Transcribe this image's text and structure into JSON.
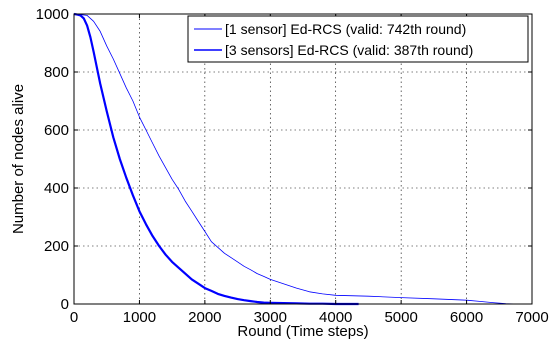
{
  "chart_data": {
    "type": "line",
    "xlabel": "Round (Time steps)",
    "ylabel": "Number of nodes alive",
    "xlim": [
      0,
      7000
    ],
    "ylim": [
      0,
      1000
    ],
    "x_ticks": [
      0,
      1000,
      2000,
      3000,
      4000,
      5000,
      6000,
      7000
    ],
    "y_ticks": [
      0,
      200,
      400,
      600,
      800,
      1000
    ],
    "grid": true,
    "legend_position": "top-right",
    "line_color": "#0000ff",
    "series": [
      {
        "name": "[1 sensor] Ed-RCS (valid: 742th round)",
        "line_width": 0.8,
        "x": [
          0,
          200,
          300,
          400,
          500,
          600,
          700,
          800,
          900,
          1000,
          1100,
          1200,
          1300,
          1400,
          1500,
          1600,
          1700,
          1800,
          1900,
          2000,
          2100,
          2200,
          2300,
          2400,
          2500,
          2600,
          2700,
          2800,
          2900,
          3000,
          3200,
          3400,
          3600,
          3800,
          4000,
          4500,
          5000,
          5500,
          6000,
          6200,
          6400,
          6500,
          6600,
          6800
        ],
        "values": [
          1000,
          995,
          975,
          940,
          890,
          845,
          795,
          745,
          700,
          645,
          600,
          555,
          510,
          470,
          430,
          395,
          355,
          320,
          285,
          250,
          215,
          195,
          175,
          160,
          145,
          130,
          118,
          105,
          95,
          85,
          70,
          55,
          42,
          35,
          30,
          27,
          22,
          18,
          13,
          9,
          5,
          3,
          1,
          0
        ]
      },
      {
        "name": "[3 sensors] Ed-RCS (valid: 387th round)",
        "line_width": 2.2,
        "x": [
          0,
          50,
          100,
          150,
          200,
          250,
          300,
          350,
          400,
          500,
          600,
          700,
          800,
          900,
          1000,
          1100,
          1200,
          1300,
          1400,
          1500,
          1600,
          1700,
          1800,
          1900,
          2000,
          2100,
          2200,
          2300,
          2400,
          2500,
          2600,
          2700,
          2800,
          2900,
          3000,
          3200,
          3400,
          3600,
          3800,
          4000,
          4200,
          4350
        ],
        "values": [
          1000,
          998,
          995,
          985,
          960,
          920,
          870,
          815,
          760,
          665,
          575,
          500,
          435,
          375,
          320,
          275,
          235,
          200,
          170,
          145,
          125,
          105,
          85,
          70,
          55,
          45,
          35,
          28,
          22,
          17,
          13,
          10,
          7,
          5,
          4,
          3,
          2,
          1,
          1,
          0,
          0,
          0
        ]
      }
    ]
  }
}
